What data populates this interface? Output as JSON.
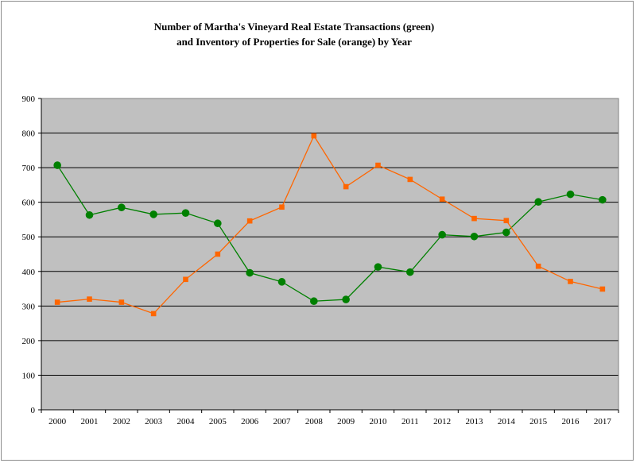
{
  "chart_data": {
    "type": "line",
    "title_lines": [
      "Number of Martha's Vineyard Real Estate Transactions (green)",
      "and Inventory of Properties for Sale (orange) by Year"
    ],
    "xlabel": "",
    "ylabel": "",
    "ylim": [
      0,
      900
    ],
    "yticks": [
      "0",
      "100",
      "200",
      "300",
      "400",
      "500",
      "600",
      "700",
      "800",
      "900"
    ],
    "categories": [
      "2000",
      "2001",
      "2002",
      "2003",
      "2004",
      "2005",
      "2006",
      "2007",
      "2008",
      "2009",
      "2010",
      "2011",
      "2012",
      "2013",
      "2014",
      "2015",
      "2016",
      "2017"
    ],
    "grid": true,
    "legend": "none",
    "plot_background": "#c0c0c0",
    "series": [
      {
        "color": "#008000",
        "marker": "circle",
        "values": [
          707,
          563,
          585,
          565,
          569,
          539,
          396,
          370,
          314,
          319,
          413,
          398,
          506,
          501,
          513,
          601,
          623,
          607
        ]
      },
      {
        "color": "#ff6600",
        "marker": "square",
        "values": [
          311,
          320,
          311,
          278,
          377,
          450,
          546,
          586,
          792,
          645,
          707,
          666,
          609,
          553,
          547,
          415,
          371,
          349
        ]
      }
    ]
  }
}
